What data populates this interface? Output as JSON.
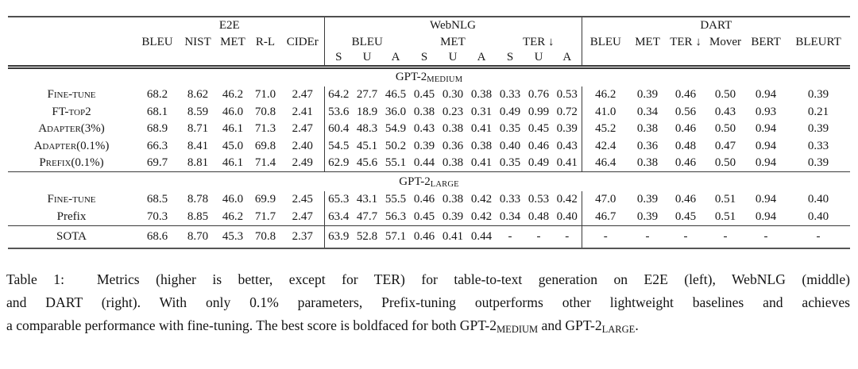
{
  "page": {
    "background": "#ffffff",
    "text_color": "#161616",
    "rule_color_thick": "#4f4f4f",
    "rule_color_thin": "#3a3a3a"
  },
  "table": {
    "col_groups": [
      {
        "label": "E2E"
      },
      {
        "label": "WebNLG"
      },
      {
        "label": "DART"
      }
    ],
    "e2e_columns": [
      "BLEU",
      "NIST",
      "MET",
      "R-L",
      "CIDEr"
    ],
    "webnlg_subgroups": [
      {
        "label": "BLEU"
      },
      {
        "label": "MET"
      },
      {
        "label": "TER ↓"
      }
    ],
    "webnlg_sua": [
      "S",
      "U",
      "A",
      "S",
      "U",
      "A",
      "S",
      "U",
      "A"
    ],
    "dart_columns": [
      "BLEU",
      "MET",
      "TER ↓",
      "Mover",
      "BERT",
      "BLEURT"
    ],
    "sections": [
      {
        "title_base": "GPT-2",
        "title_sub": "MEDIUM",
        "rows": [
          {
            "label": "Fine-tune",
            "smallcaps": true,
            "cells": [
              "68.2",
              "8.62",
              {
                "v": "46.2",
                "b": true
              },
              "71.0",
              "2.47",
              {
                "v": "64.2",
                "b": true
              },
              "27.7",
              "46.5",
              {
                "v": "0.45",
                "b": true
              },
              "0.30",
              "0.38",
              {
                "v": "0.33",
                "b": true
              },
              "0.76",
              "0.53",
              "46.2",
              {
                "v": "0.39",
                "b": true
              },
              {
                "v": "0.46",
                "b": true
              },
              {
                "v": "0.50",
                "b": true
              },
              {
                "v": "0.94",
                "b": true
              },
              {
                "v": "0.39",
                "b": true
              }
            ]
          },
          {
            "label": "FT-top2",
            "smallcaps": true,
            "cells": [
              "68.1",
              "8.59",
              "46.0",
              "70.8",
              "2.41",
              "53.6",
              "18.9",
              "36.0",
              "0.38",
              "0.23",
              "0.31",
              "0.49",
              "0.99",
              "0.72",
              "41.0",
              "0.34",
              "0.56",
              "0.43",
              "0.93",
              "0.21"
            ]
          },
          {
            "label": "Adapter(3%)",
            "smallcaps": true,
            "cells": [
              "68.9",
              "8.71",
              "46.1",
              "71.3",
              "2.47",
              "60.4",
              {
                "v": "48.3",
                "b": true
              },
              "54.9",
              "0.43",
              {
                "v": "0.38",
                "b": true
              },
              {
                "v": "0.41",
                "b": true
              },
              "0.35",
              {
                "v": "0.45",
                "b": true
              },
              {
                "v": "0.39",
                "b": true
              },
              "45.2",
              "0.38",
              {
                "v": "0.46",
                "b": true
              },
              {
                "v": "0.50",
                "b": true
              },
              {
                "v": "0.94",
                "b": true
              },
              {
                "v": "0.39",
                "b": true
              }
            ]
          },
          {
            "label": "Adapter(0.1%)",
            "smallcaps": true,
            "cells": [
              "66.3",
              "8.41",
              "45.0",
              "69.8",
              "2.40",
              "54.5",
              "45.1",
              "50.2",
              "0.39",
              "0.36",
              "0.38",
              "0.40",
              "0.46",
              "0.43",
              "42.4",
              "0.36",
              "0.48",
              "0.47",
              {
                "v": "0.94",
                "b": true
              },
              "0.33"
            ]
          },
          {
            "label": "Prefix(0.1%)",
            "smallcaps": true,
            "cells": [
              {
                "v": "69.7",
                "b": true
              },
              {
                "v": "8.81",
                "b": true
              },
              "46.1",
              {
                "v": "71.4",
                "b": true
              },
              {
                "v": "2.49",
                "b": true
              },
              "62.9",
              "45.6",
              {
                "v": "55.1",
                "b": true
              },
              "0.44",
              {
                "v": "0.38",
                "b": true
              },
              {
                "v": "0.41",
                "b": true
              },
              "0.35",
              "0.49",
              "0.41",
              {
                "v": "46.4",
                "b": true
              },
              "0.38",
              {
                "v": "0.46",
                "b": true
              },
              {
                "v": "0.50",
                "b": true
              },
              {
                "v": "0.94",
                "b": true
              },
              {
                "v": "0.39",
                "b": true
              }
            ]
          }
        ]
      },
      {
        "title_base": "GPT-2",
        "title_sub": "LARGE",
        "rows": [
          {
            "label": "Fine-tune",
            "smallcaps": true,
            "cells": [
              "68.5",
              "8.78",
              "46.0",
              "69.9",
              "2.45",
              {
                "v": "65.3",
                "b": true
              },
              "43.1",
              "55.5",
              {
                "v": "0.46",
                "b": true
              },
              "0.38",
              {
                "v": "0.42",
                "b": true
              },
              {
                "v": "0.33",
                "b": true
              },
              "0.53",
              "0.42",
              {
                "v": "47.0",
                "b": true
              },
              {
                "v": "0.39",
                "b": true
              },
              "0.46",
              {
                "v": "0.51",
                "b": true
              },
              {
                "v": "0.94",
                "b": true
              },
              {
                "v": "0.40",
                "b": true
              }
            ]
          },
          {
            "label": "Prefix",
            "smallcaps": false,
            "cells": [
              {
                "v": "70.3",
                "b": true
              },
              {
                "v": "8.85",
                "b": true
              },
              {
                "v": "46.2",
                "b": true
              },
              {
                "v": "71.7",
                "b": true
              },
              {
                "v": "2.47",
                "b": true
              },
              "63.4",
              {
                "v": "47.7",
                "b": true
              },
              {
                "v": "56.3",
                "b": true
              },
              "0.45",
              {
                "v": "0.39",
                "b": true
              },
              {
                "v": "0.42",
                "b": true
              },
              "0.34",
              {
                "v": "0.48",
                "b": true
              },
              {
                "v": "0.40",
                "b": true
              },
              "46.7",
              {
                "v": "0.39",
                "b": true
              },
              {
                "v": "0.45",
                "b": true
              },
              {
                "v": "0.51",
                "b": true
              },
              {
                "v": "0.94",
                "b": true
              },
              {
                "v": "0.40",
                "b": true
              }
            ]
          }
        ]
      }
    ],
    "sota_row": {
      "label": "SOTA",
      "smallcaps": false,
      "cells": [
        "68.6",
        "8.70",
        "45.3",
        "70.8",
        "2.37",
        "63.9",
        "52.8",
        "57.1",
        "0.46",
        "0.41",
        "0.44",
        "-",
        "-",
        "-",
        "-",
        "-",
        "-",
        "-",
        "-",
        "-"
      ]
    }
  },
  "caption": {
    "lines": [
      {
        "segments": [
          {
            "t": "Table 1:  Metrics (higher is better, except for TER) for table-to-text generation on E2E (left), WebNLG (middle)"
          }
        ]
      },
      {
        "segments": [
          {
            "t": "and DART (right). With only 0.1% parameters, Prefix-tuning outperforms other lightweight baselines and achieves"
          }
        ]
      },
      {
        "segments": [
          {
            "t": "a comparable performance with fine-tuning. The best score is boldfaced for both GPT-2"
          },
          {
            "t": "MEDIUM",
            "sub": true
          },
          {
            "t": " and GPT-2",
            "sub": false
          },
          {
            "t": "LARGE",
            "sub": true
          },
          {
            "t": ".",
            "sub": false
          }
        ]
      }
    ]
  }
}
